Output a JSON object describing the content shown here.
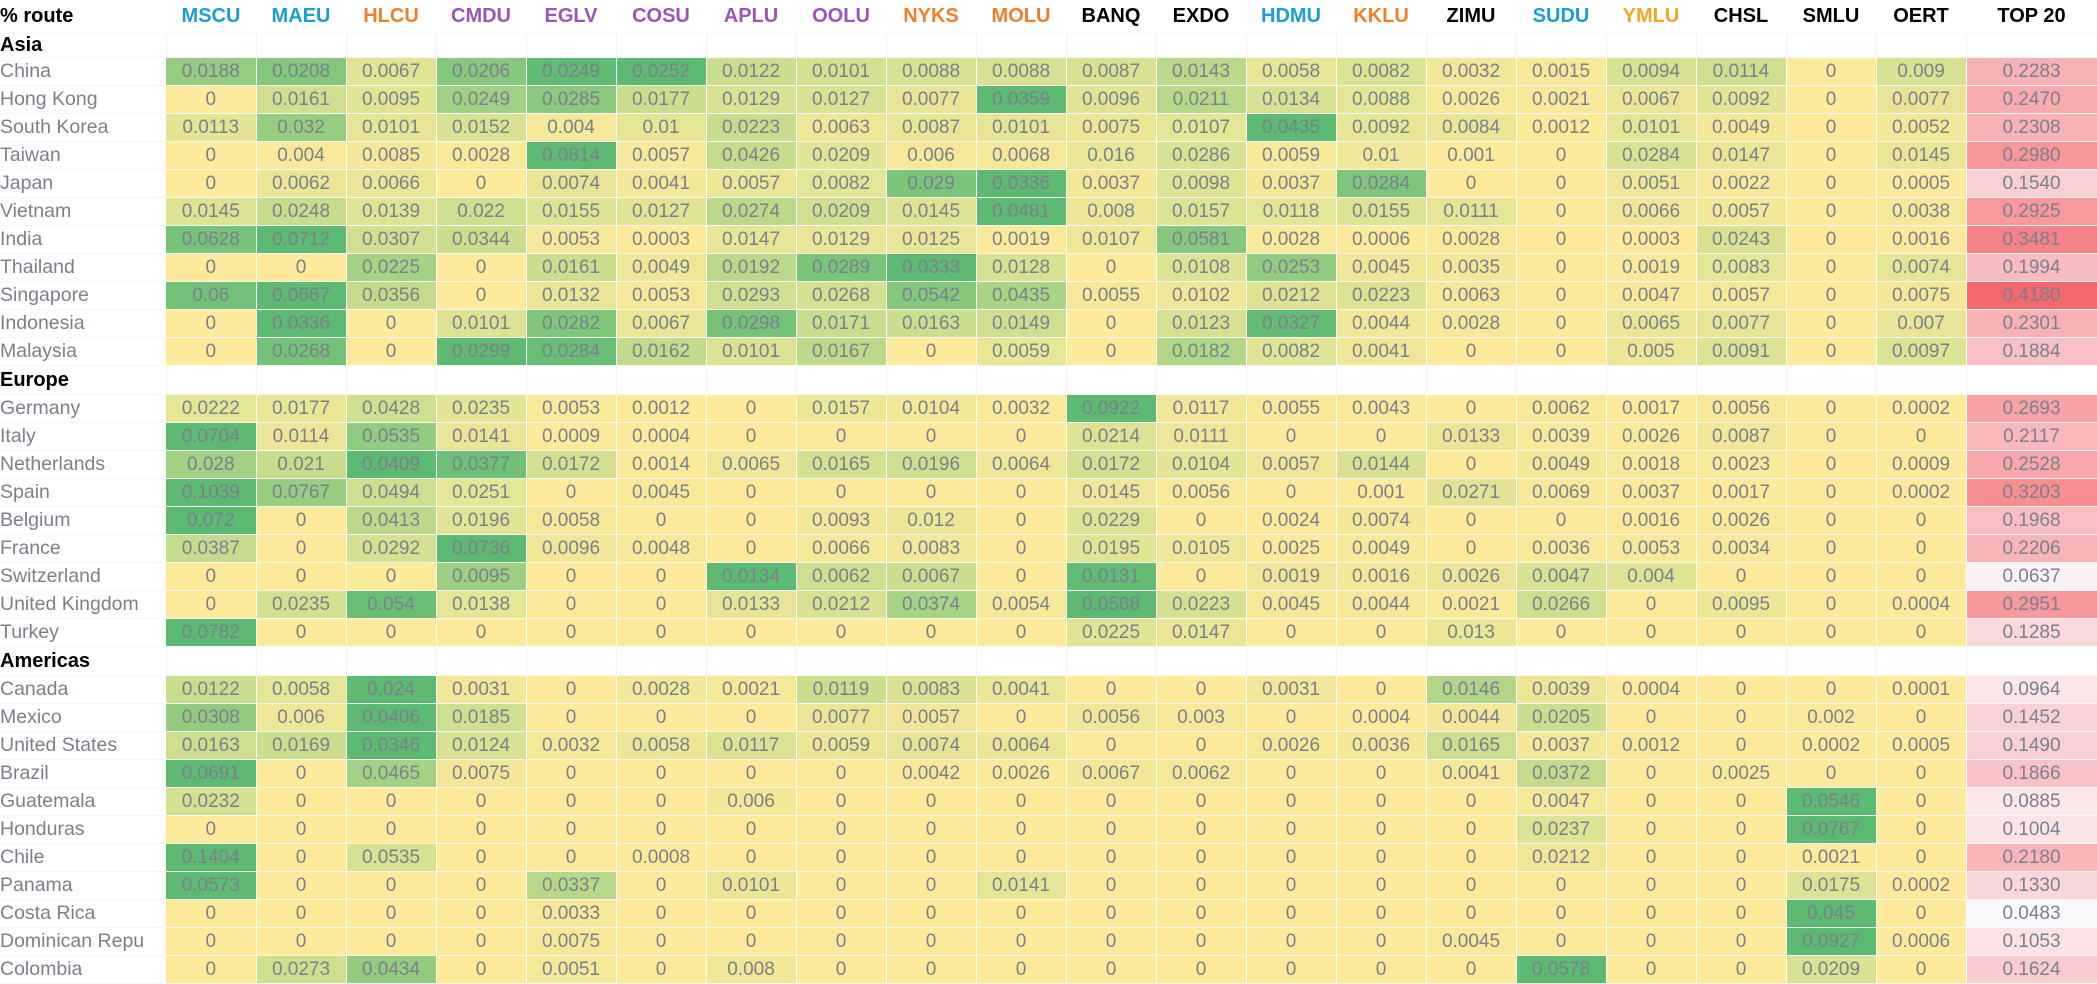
{
  "header": {
    "corner_label": "% route",
    "carriers": [
      {
        "code": "MSCU",
        "color": "#1a9fd0"
      },
      {
        "code": "MAEU",
        "color": "#1a9fd0"
      },
      {
        "code": "HLCU",
        "color": "#ef7f2a"
      },
      {
        "code": "CMDU",
        "color": "#9b56b5"
      },
      {
        "code": "EGLV",
        "color": "#9b56b5"
      },
      {
        "code": "COSU",
        "color": "#9b56b5"
      },
      {
        "code": "APLU",
        "color": "#9b56b5"
      },
      {
        "code": "OOLU",
        "color": "#9b56b5"
      },
      {
        "code": "NYKS",
        "color": "#ef7f2a"
      },
      {
        "code": "MOLU",
        "color": "#ef7f2a"
      },
      {
        "code": "BANQ",
        "color": "#000000"
      },
      {
        "code": "EXDO",
        "color": "#000000"
      },
      {
        "code": "HDMU",
        "color": "#1a9fd0"
      },
      {
        "code": "KKLU",
        "color": "#ef7f2a"
      },
      {
        "code": "ZIMU",
        "color": "#000000"
      },
      {
        "code": "SUDU",
        "color": "#1a9fd0"
      },
      {
        "code": "YMLU",
        "color": "#f5a623"
      },
      {
        "code": "CHSL",
        "color": "#000000"
      },
      {
        "code": "SMLU",
        "color": "#000000"
      },
      {
        "code": "OERT",
        "color": "#000000"
      }
    ],
    "total_label": "TOP 20"
  },
  "colors": {
    "zero": "#fdeb9b",
    "mid": "#cade8e",
    "high": "#5dba72",
    "top_low": "#fbf8fb",
    "top_high": "#f5686c",
    "text": "#7b808c"
  },
  "sections": [
    {
      "name": "Asia",
      "rows": [
        {
          "name": "China",
          "values": [
            "0.0188",
            "0.0208",
            "0.0067",
            "0.0206",
            "0.0249",
            "0.0252",
            "0.0122",
            "0.0101",
            "0.0088",
            "0.0088",
            "0.0087",
            "0.0143",
            "0.0058",
            "0.0082",
            "0.0032",
            "0.0015",
            "0.0094",
            "0.0114",
            "0",
            "0.009"
          ],
          "top20": "0.2283"
        },
        {
          "name": "Hong Kong",
          "values": [
            "0",
            "0.0161",
            "0.0095",
            "0.0249",
            "0.0285",
            "0.0177",
            "0.0129",
            "0.0127",
            "0.0077",
            "0.0359",
            "0.0096",
            "0.0211",
            "0.0134",
            "0.0088",
            "0.0026",
            "0.0021",
            "0.0067",
            "0.0092",
            "0",
            "0.0077"
          ],
          "top20": "0.2470"
        },
        {
          "name": "South Korea",
          "values": [
            "0.0113",
            "0.032",
            "0.0101",
            "0.0152",
            "0.004",
            "0.01",
            "0.0223",
            "0.0063",
            "0.0087",
            "0.0101",
            "0.0075",
            "0.0107",
            "0.0435",
            "0.0092",
            "0.0084",
            "0.0012",
            "0.0101",
            "0.0049",
            "0",
            "0.0052"
          ],
          "top20": "0.2308"
        },
        {
          "name": "Taiwan",
          "values": [
            "0",
            "0.004",
            "0.0085",
            "0.0028",
            "0.0814",
            "0.0057",
            "0.0426",
            "0.0209",
            "0.006",
            "0.0068",
            "0.016",
            "0.0286",
            "0.0059",
            "0.01",
            "0.001",
            "0",
            "0.0284",
            "0.0147",
            "0",
            "0.0145"
          ],
          "top20": "0.2980"
        },
        {
          "name": "Japan",
          "values": [
            "0",
            "0.0062",
            "0.0066",
            "0",
            "0.0074",
            "0.0041",
            "0.0057",
            "0.0082",
            "0.029",
            "0.0336",
            "0.0037",
            "0.0098",
            "0.0037",
            "0.0284",
            "0",
            "0",
            "0.0051",
            "0.0022",
            "0",
            "0.0005"
          ],
          "top20": "0.1540"
        },
        {
          "name": "Vietnam",
          "values": [
            "0.0145",
            "0.0248",
            "0.0139",
            "0.022",
            "0.0155",
            "0.0127",
            "0.0274",
            "0.0209",
            "0.0145",
            "0.0481",
            "0.008",
            "0.0157",
            "0.0118",
            "0.0155",
            "0.0111",
            "0",
            "0.0066",
            "0.0057",
            "0",
            "0.0038"
          ],
          "top20": "0.2925"
        },
        {
          "name": "India",
          "values": [
            "0.0628",
            "0.0712",
            "0.0307",
            "0.0344",
            "0.0053",
            "0.0003",
            "0.0147",
            "0.0129",
            "0.0125",
            "0.0019",
            "0.0107",
            "0.0581",
            "0.0028",
            "0.0006",
            "0.0028",
            "0",
            "0.0003",
            "0.0243",
            "0",
            "0.0016"
          ],
          "top20": "0.3481"
        },
        {
          "name": "Thailand",
          "values": [
            "0",
            "0",
            "0.0225",
            "0",
            "0.0161",
            "0.0049",
            "0.0192",
            "0.0289",
            "0.0333",
            "0.0128",
            "0",
            "0.0108",
            "0.0253",
            "0.0045",
            "0.0035",
            "0",
            "0.0019",
            "0.0083",
            "0",
            "0.0074"
          ],
          "top20": "0.1994"
        },
        {
          "name": "Singapore",
          "values": [
            "0.06",
            "0.0667",
            "0.0356",
            "0",
            "0.0132",
            "0.0053",
            "0.0293",
            "0.0268",
            "0.0542",
            "0.0435",
            "0.0055",
            "0.0102",
            "0.0212",
            "0.0223",
            "0.0063",
            "0",
            "0.0047",
            "0.0057",
            "0",
            "0.0075"
          ],
          "top20": "0.4180"
        },
        {
          "name": "Indonesia",
          "values": [
            "0",
            "0.0336",
            "0",
            "0.0101",
            "0.0282",
            "0.0067",
            "0.0298",
            "0.0171",
            "0.0163",
            "0.0149",
            "0",
            "0.0123",
            "0.0327",
            "0.0044",
            "0.0028",
            "0",
            "0.0065",
            "0.0077",
            "0",
            "0.007"
          ],
          "top20": "0.2301"
        },
        {
          "name": "Malaysia",
          "values": [
            "0",
            "0.0268",
            "0",
            "0.0299",
            "0.0284",
            "0.0162",
            "0.0101",
            "0.0167",
            "0",
            "0.0059",
            "0",
            "0.0182",
            "0.0082",
            "0.0041",
            "0",
            "0",
            "0.005",
            "0.0091",
            "0",
            "0.0097"
          ],
          "top20": "0.1884"
        }
      ]
    },
    {
      "name": "Europe",
      "rows": [
        {
          "name": "Germany",
          "values": [
            "0.0222",
            "0.0177",
            "0.0428",
            "0.0235",
            "0.0053",
            "0.0012",
            "0",
            "0.0157",
            "0.0104",
            "0.0032",
            "0.0922",
            "0.0117",
            "0.0055",
            "0.0043",
            "0",
            "0.0062",
            "0.0017",
            "0.0056",
            "0",
            "0.0002"
          ],
          "top20": "0.2693"
        },
        {
          "name": "Italy",
          "values": [
            "0.0704",
            "0.0114",
            "0.0535",
            "0.0141",
            "0.0009",
            "0.0004",
            "0",
            "0",
            "0",
            "0",
            "0.0214",
            "0.0111",
            "0",
            "0",
            "0.0133",
            "0.0039",
            "0.0026",
            "0.0087",
            "0",
            "0"
          ],
          "top20": "0.2117"
        },
        {
          "name": "Netherlands",
          "values": [
            "0.028",
            "0.021",
            "0.0409",
            "0.0377",
            "0.0172",
            "0.0014",
            "0.0065",
            "0.0165",
            "0.0196",
            "0.0064",
            "0.0172",
            "0.0104",
            "0.0057",
            "0.0144",
            "0",
            "0.0049",
            "0.0018",
            "0.0023",
            "0",
            "0.0009"
          ],
          "top20": "0.2528"
        },
        {
          "name": "Spain",
          "values": [
            "0.1039",
            "0.0767",
            "0.0494",
            "0.0251",
            "0",
            "0.0045",
            "0",
            "0",
            "0",
            "0",
            "0.0145",
            "0.0056",
            "0",
            "0.001",
            "0.0271",
            "0.0069",
            "0.0037",
            "0.0017",
            "0",
            "0.0002"
          ],
          "top20": "0.3203"
        },
        {
          "name": "Belgium",
          "values": [
            "0.072",
            "0",
            "0.0413",
            "0.0196",
            "0.0058",
            "0",
            "0",
            "0.0093",
            "0.012",
            "0",
            "0.0229",
            "0",
            "0.0024",
            "0.0074",
            "0",
            "0",
            "0.0016",
            "0.0026",
            "0",
            "0"
          ],
          "top20": "0.1968"
        },
        {
          "name": "France",
          "values": [
            "0.0387",
            "0",
            "0.0292",
            "0.0736",
            "0.0096",
            "0.0048",
            "0",
            "0.0066",
            "0.0083",
            "0",
            "0.0195",
            "0.0105",
            "0.0025",
            "0.0049",
            "0",
            "0.0036",
            "0.0053",
            "0.0034",
            "0",
            "0"
          ],
          "top20": "0.2206"
        },
        {
          "name": "Switzerland",
          "values": [
            "0",
            "0",
            "0",
            "0.0095",
            "0",
            "0",
            "0.0134",
            "0.0062",
            "0.0067",
            "0",
            "0.0131",
            "0",
            "0.0019",
            "0.0016",
            "0.0026",
            "0.0047",
            "0.004",
            "0",
            "0",
            "0"
          ],
          "top20": "0.0637"
        },
        {
          "name": "United Kingdom",
          "values": [
            "0",
            "0.0235",
            "0.054",
            "0.0138",
            "0",
            "0",
            "0.0133",
            "0.0212",
            "0.0374",
            "0.0054",
            "0.0568",
            "0.0223",
            "0.0045",
            "0.0044",
            "0.0021",
            "0.0266",
            "0",
            "0.0095",
            "0",
            "0.0004"
          ],
          "top20": "0.2951"
        },
        {
          "name": "Turkey",
          "values": [
            "0.0782",
            "0",
            "0",
            "0",
            "0",
            "0",
            "0",
            "0",
            "0",
            "0",
            "0.0225",
            "0.0147",
            "0",
            "0",
            "0.013",
            "0",
            "0",
            "0",
            "0",
            "0"
          ],
          "top20": "0.1285"
        }
      ]
    },
    {
      "name": "Americas",
      "rows": [
        {
          "name": "Canada",
          "values": [
            "0.0122",
            "0.0058",
            "0.024",
            "0.0031",
            "0",
            "0.0028",
            "0.0021",
            "0.0119",
            "0.0083",
            "0.0041",
            "0",
            "0",
            "0.0031",
            "0",
            "0.0146",
            "0.0039",
            "0.0004",
            "0",
            "0",
            "0.0001"
          ],
          "top20": "0.0964"
        },
        {
          "name": "Mexico",
          "values": [
            "0.0308",
            "0.006",
            "0.0406",
            "0.0185",
            "0",
            "0",
            "0",
            "0.0077",
            "0.0057",
            "0",
            "0.0056",
            "0.003",
            "0",
            "0.0004",
            "0.0044",
            "0.0205",
            "0",
            "0",
            "0.002",
            "0"
          ],
          "top20": "0.1452"
        },
        {
          "name": "United States",
          "values": [
            "0.0163",
            "0.0169",
            "0.0346",
            "0.0124",
            "0.0032",
            "0.0058",
            "0.0117",
            "0.0059",
            "0.0074",
            "0.0064",
            "0",
            "0",
            "0.0026",
            "0.0036",
            "0.0165",
            "0.0037",
            "0.0012",
            "0",
            "0.0002",
            "0.0005"
          ],
          "top20": "0.1490"
        },
        {
          "name": "Brazil",
          "values": [
            "0.0691",
            "0",
            "0.0465",
            "0.0075",
            "0",
            "0",
            "0",
            "0",
            "0.0042",
            "0.0026",
            "0.0067",
            "0.0062",
            "0",
            "0",
            "0.0041",
            "0.0372",
            "0",
            "0.0025",
            "0",
            "0"
          ],
          "top20": "0.1866"
        },
        {
          "name": "Guatemala",
          "values": [
            "0.0232",
            "0",
            "0",
            "0",
            "0",
            "0",
            "0.006",
            "0",
            "0",
            "0",
            "0",
            "0",
            "0",
            "0",
            "0",
            "0.0047",
            "0",
            "0",
            "0.0546",
            "0"
          ],
          "top20": "0.0885"
        },
        {
          "name": "Honduras",
          "values": [
            "0",
            "0",
            "0",
            "0",
            "0",
            "0",
            "0",
            "0",
            "0",
            "0",
            "0",
            "0",
            "0",
            "0",
            "0",
            "0.0237",
            "0",
            "0",
            "0.0767",
            "0"
          ],
          "top20": "0.1004"
        },
        {
          "name": "Chile",
          "values": [
            "0.1404",
            "0",
            "0.0535",
            "0",
            "0",
            "0.0008",
            "0",
            "0",
            "0",
            "0",
            "0",
            "0",
            "0",
            "0",
            "0",
            "0.0212",
            "0",
            "0",
            "0.0021",
            "0"
          ],
          "top20": "0.2180"
        },
        {
          "name": "Panama",
          "values": [
            "0.0573",
            "0",
            "0",
            "0",
            "0.0337",
            "0",
            "0.0101",
            "0",
            "0",
            "0.0141",
            "0",
            "0",
            "0",
            "0",
            "0",
            "0",
            "0",
            "0",
            "0.0175",
            "0.0002"
          ],
          "top20": "0.1330"
        },
        {
          "name": "Costa Rica",
          "values": [
            "0",
            "0",
            "0",
            "0",
            "0.0033",
            "0",
            "0",
            "0",
            "0",
            "0",
            "0",
            "0",
            "0",
            "0",
            "0",
            "0",
            "0",
            "0",
            "0.045",
            "0"
          ],
          "top20": "0.0483"
        },
        {
          "name": "Dominican Repu",
          "values": [
            "0",
            "0",
            "0",
            "0",
            "0.0075",
            "0",
            "0",
            "0",
            "0",
            "0",
            "0",
            "0",
            "0",
            "0",
            "0.0045",
            "0",
            "0",
            "0",
            "0.0927",
            "0.0006"
          ],
          "top20": "0.1053"
        },
        {
          "name": "Colombia",
          "values": [
            "0",
            "0.0273",
            "0.0434",
            "0",
            "0.0051",
            "0",
            "0.008",
            "0",
            "0",
            "0",
            "0",
            "0",
            "0",
            "0",
            "0",
            "0.0578",
            "0",
            "0",
            "0.0209",
            "0"
          ],
          "top20": "0.1624"
        }
      ]
    }
  ]
}
